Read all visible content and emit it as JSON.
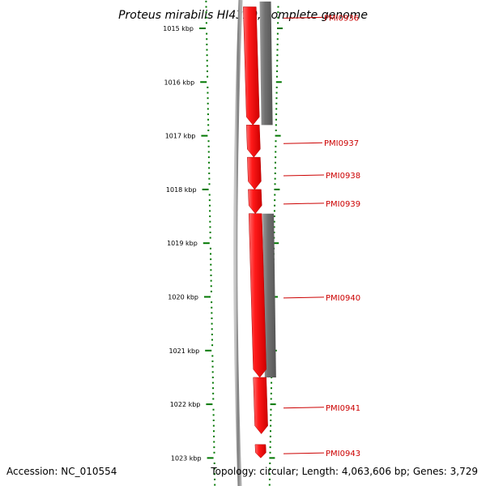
{
  "title": "Proteus mirabilis HI4320, complete genome",
  "ruler": {
    "unit": "kbp",
    "ticks": [
      {
        "kbp": 1015,
        "label": "1015 kbp"
      },
      {
        "kbp": 1016,
        "label": "1016 kbp"
      },
      {
        "kbp": 1017,
        "label": "1017 kbp"
      },
      {
        "kbp": 1018,
        "label": "1018 kbp"
      },
      {
        "kbp": 1019,
        "label": "1019 kbp"
      },
      {
        "kbp": 1020,
        "label": "1020 kbp"
      },
      {
        "kbp": 1021,
        "label": "1021 kbp"
      },
      {
        "kbp": 1022,
        "label": "1022 kbp"
      },
      {
        "kbp": 1023,
        "label": "1023 kbp"
      }
    ]
  },
  "genes": [
    {
      "name": "PMI0936",
      "start": 1014.6,
      "end": 1016.8
    },
    {
      "name": "PMI0937",
      "start": 1016.8,
      "end": 1017.4
    },
    {
      "name": "PMI0938",
      "start": 1017.4,
      "end": 1018.0
    },
    {
      "name": "PMI0939",
      "start": 1018.0,
      "end": 1018.45
    },
    {
      "name": "PMI0940",
      "start": 1018.45,
      "end": 1021.5
    },
    {
      "name": "PMI0941",
      "start": 1021.5,
      "end": 1022.55
    },
    {
      "name": "PMI0943",
      "start": 1022.75,
      "end": 1023.0
    }
  ],
  "gray_tracks": [
    {
      "start": 1014.5,
      "end": 1016.8
    },
    {
      "start": 1018.45,
      "end": 1021.5
    }
  ],
  "footer": {
    "accession": "Accession: NC_010554",
    "summary": "Topology: circular; Length: 4,063,606 bp; Genes: 3,729"
  },
  "colors": {
    "gene": "#ee0000",
    "gene_highlight": "#ff6a6a",
    "gray_track": "#6e6e6e",
    "backbone": "#8a8a8a",
    "ruler": "#007700",
    "label": "#cc0000"
  }
}
